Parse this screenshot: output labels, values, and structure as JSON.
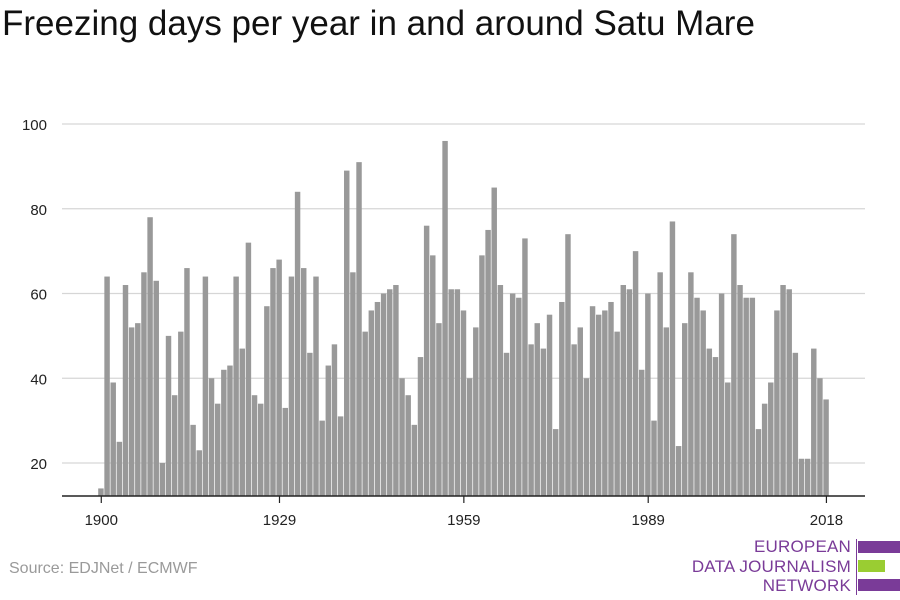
{
  "title": "Freezing days per year in and around Satu Mare",
  "source": "Source: EDJNet / ECMWF",
  "logo": {
    "lines": [
      "EUROPEAN",
      "DATA JOURNALISM",
      "NETWORK"
    ],
    "colors": [
      "#7a3b98",
      "#9acd32",
      "#7a3b98"
    ]
  },
  "chart_data": {
    "type": "bar",
    "title": "Freezing days per year in and around Satu Mare",
    "xlabel": "",
    "ylabel": "",
    "ylim": [
      12,
      100
    ],
    "yticks": [
      20,
      40,
      60,
      80,
      100
    ],
    "xticks": [
      1900,
      1929,
      1959,
      1989,
      2018
    ],
    "grid": true,
    "bar_color": "#999999",
    "years": [
      1900,
      1901,
      1902,
      1903,
      1904,
      1905,
      1906,
      1907,
      1908,
      1909,
      1910,
      1911,
      1912,
      1913,
      1914,
      1915,
      1916,
      1917,
      1918,
      1919,
      1920,
      1921,
      1922,
      1923,
      1924,
      1925,
      1926,
      1927,
      1928,
      1929,
      1930,
      1931,
      1932,
      1933,
      1934,
      1935,
      1936,
      1937,
      1938,
      1939,
      1940,
      1941,
      1942,
      1943,
      1944,
      1945,
      1946,
      1947,
      1948,
      1949,
      1950,
      1951,
      1952,
      1953,
      1954,
      1955,
      1956,
      1957,
      1958,
      1959,
      1960,
      1961,
      1962,
      1963,
      1964,
      1965,
      1966,
      1967,
      1968,
      1969,
      1970,
      1971,
      1972,
      1973,
      1974,
      1975,
      1976,
      1977,
      1978,
      1979,
      1980,
      1981,
      1982,
      1983,
      1984,
      1985,
      1986,
      1987,
      1988,
      1989,
      1990,
      1991,
      1992,
      1993,
      1994,
      1995,
      1996,
      1997,
      1998,
      1999,
      2000,
      2001,
      2002,
      2003,
      2004,
      2005,
      2006,
      2007,
      2008,
      2009,
      2010,
      2011,
      2012,
      2013,
      2014,
      2015,
      2016,
      2017,
      2018
    ],
    "values": [
      14,
      64,
      39,
      25,
      62,
      52,
      53,
      65,
      78,
      63,
      20,
      50,
      36,
      51,
      66,
      29,
      23,
      64,
      40,
      34,
      42,
      43,
      64,
      47,
      72,
      36,
      34,
      57,
      66,
      68,
      33,
      64,
      84,
      66,
      46,
      64,
      30,
      43,
      48,
      31,
      89,
      65,
      91,
      51,
      56,
      58,
      60,
      61,
      62,
      40,
      36,
      29,
      45,
      76,
      69,
      53,
      96,
      61,
      61,
      56,
      40,
      52,
      69,
      75,
      85,
      62,
      46,
      60,
      59,
      73,
      48,
      53,
      47,
      55,
      28,
      58,
      74,
      48,
      52,
      40,
      57,
      55,
      56,
      58,
      51,
      62,
      61,
      70,
      42,
      60,
      30,
      65,
      52,
      77,
      24,
      53,
      65,
      59,
      56,
      47,
      45,
      60,
      39,
      74,
      62,
      59,
      59,
      28,
      34,
      39,
      56,
      62,
      61,
      46,
      21,
      21,
      47,
      40,
      35
    ]
  }
}
